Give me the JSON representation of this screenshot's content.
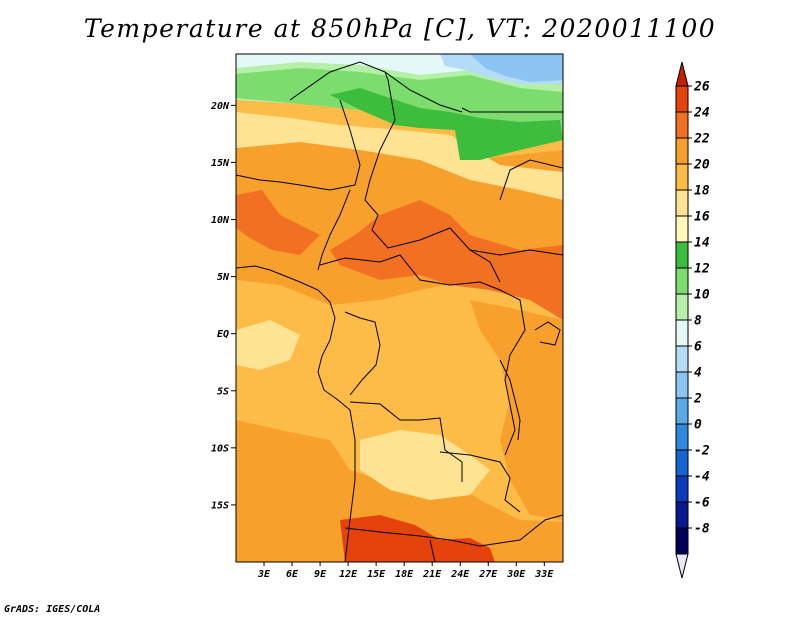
{
  "title": "Temperature at 850hPa [C], VT: 2020011100",
  "credit": "GrADS: IGES/COLA",
  "lat_labels": [
    "20N",
    "15N",
    "10N",
    "5N",
    "EQ",
    "5S",
    "10S",
    "15S"
  ],
  "lon_labels": [
    "3E",
    "6E",
    "9E",
    "12E",
    "15E",
    "18E",
    "21E",
    "24E",
    "27E",
    "30E",
    "33E"
  ],
  "map": {
    "lon_range": [
      0,
      35
    ],
    "lat_range": [
      -20,
      24.5
    ],
    "units": "degC"
  },
  "colorbar": {
    "labels": [
      "26",
      "24",
      "22",
      "20",
      "18",
      "16",
      "14",
      "12",
      "10",
      "8",
      "6",
      "4",
      "2",
      "0",
      "-2",
      "-4",
      "-6",
      "-8"
    ],
    "colors": [
      "#c81f00",
      "#e5420c",
      "#f27022",
      "#f8a02c",
      "#fdbb48",
      "#fee393",
      "#fff8b8",
      "#3cbd3c",
      "#7ddc6e",
      "#b4f0a8",
      "#e4f8f8",
      "#b4dcf6",
      "#8cc4f4",
      "#5aaae8",
      "#2d88e0",
      "#1664d0",
      "#0c3cbc",
      "#061a8e",
      "#00005c",
      "#e8e8f8"
    ]
  },
  "field_colors": {
    "orange_dark": "#f27022",
    "orange": "#f8a02c",
    "amber": "#fdbb48",
    "yellow": "#fee393",
    "pale_yellow": "#fff8b8",
    "green": "#3cbd3c",
    "light_green": "#7ddc6e",
    "pale_green": "#b4f0a8",
    "very_pale": "#e4f8f8",
    "pale_blue": "#b4dcf6",
    "light_blue": "#8cc4f4",
    "red_orange": "#e5420c",
    "red": "#c81f00"
  }
}
